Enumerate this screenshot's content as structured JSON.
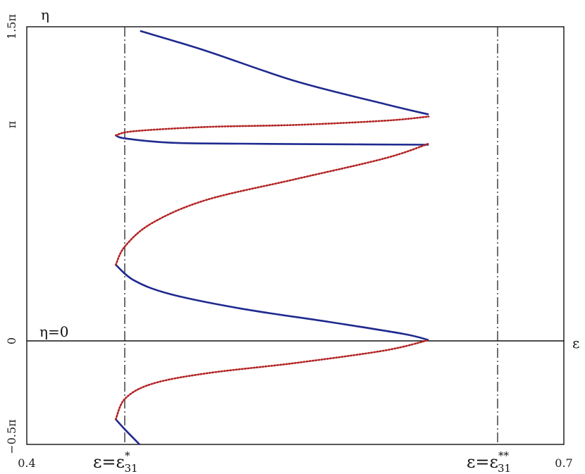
{
  "chart_data": {
    "type": "line",
    "x_axis": {
      "label": "ε",
      "ticks": [
        "0.4",
        "0.7"
      ],
      "range": [
        0.4,
        0.7
      ]
    },
    "y_axis": {
      "label": "η",
      "ticks": [
        "1.5π",
        "π",
        "0",
        "−0.5π"
      ],
      "range_in_pi": [
        -0.5,
        1.5
      ]
    },
    "annotations": {
      "zero_line": "η=0",
      "left_marker": {
        "base": "ε=ε",
        "sub": "31",
        "sup": "*",
        "x_approx": 0.4497
      },
      "right_marker": {
        "base": "ε=ε",
        "sub": "31",
        "sup": "**",
        "x_approx": 0.6245
      }
    },
    "series": [
      {
        "style": "solid",
        "color": "#1f2a8f",
        "x": [
          0.4633,
          0.5,
          0.55,
          0.6,
          0.6245
        ],
        "y_in_pi": [
          1.48,
          1.385,
          1.24,
          1.13,
          1.08
        ]
      },
      {
        "style": "solid",
        "color": "#1f2a8f",
        "x": [
          0.4497,
          0.455,
          0.48,
          0.52,
          0.58,
          0.6245
        ],
        "y_in_pi": [
          0.98,
          0.965,
          0.945,
          0.94,
          0.937,
          0.935
        ]
      },
      {
        "style": "solid",
        "color": "#1f2a8f",
        "x": [
          0.4497,
          0.46,
          0.48,
          0.52,
          0.57,
          0.61,
          0.6245
        ],
        "y_in_pi": [
          0.36,
          0.285,
          0.22,
          0.15,
          0.085,
          0.03,
          0.0
        ]
      },
      {
        "style": "solid",
        "color": "#1f2a8f",
        "x": [
          0.4497,
          0.455,
          0.463
        ],
        "y_in_pi": [
          -0.38,
          -0.43,
          -0.5
        ]
      },
      {
        "style": "dotted",
        "color": "#b22222",
        "x": [
          0.4497,
          0.46,
          0.5,
          0.55,
          0.6,
          0.6245
        ],
        "y_in_pi": [
          0.98,
          1.0,
          1.02,
          1.03,
          1.05,
          1.07
        ]
      },
      {
        "style": "dotted",
        "color": "#b22222",
        "x": [
          0.4497,
          0.455,
          0.47,
          0.5,
          0.55,
          0.6,
          0.6245
        ],
        "y_in_pi": [
          0.36,
          0.45,
          0.56,
          0.67,
          0.77,
          0.87,
          0.94
        ]
      },
      {
        "style": "dotted",
        "color": "#b22222",
        "x": [
          0.4497,
          0.455,
          0.47,
          0.5,
          0.55,
          0.6,
          0.6245
        ],
        "y_in_pi": [
          -0.38,
          -0.28,
          -0.21,
          -0.16,
          -0.11,
          -0.05,
          0.0
        ]
      }
    ],
    "grid": false
  }
}
